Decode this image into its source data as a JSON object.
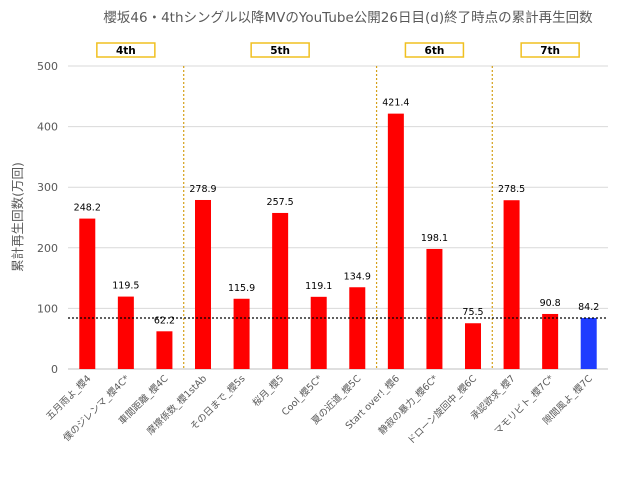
{
  "chart_data": {
    "type": "bar",
    "title": "櫻坂46・4thシングル以降MVのYouTube公開26日目(d)終了時点の累計再生回数",
    "xlabel": "",
    "ylabel": "累計再生回数(万回)",
    "ylim": [
      0,
      500
    ],
    "yticks": [
      "0",
      "100",
      "200",
      "300",
      "400",
      "500"
    ],
    "grid": "horizontal",
    "categories": [
      "五月雨よ_櫻4",
      "僕のジレンマ_櫻4C*",
      "車間距離_櫻4C",
      "摩擦係数_櫻1stAb",
      "その日まで_櫻5s",
      "桜月_櫻5",
      "Cool_櫻5C*",
      "夏の近道_櫻5C",
      "Start over!_櫻6",
      "静寂の暴力_櫻6C*",
      "ドローン旋回中_櫻6C",
      "承認欲求_櫻7",
      "マモリビト_櫻7C*",
      "隙間風よ_櫻7C"
    ],
    "values": [
      248.2,
      119.5,
      62.2,
      278.9,
      115.9,
      257.5,
      119.1,
      134.9,
      421.4,
      198.1,
      75.5,
      278.5,
      90.8,
      84.2
    ],
    "value_labels": [
      "248.2",
      "119.5",
      "62.2",
      "278.9",
      "115.9",
      "257.5",
      "119.1",
      "134.9",
      "421.4",
      "198.1",
      "75.5",
      "278.5",
      "90.8",
      "84.2"
    ],
    "bar_colors": [
      "#ff0000",
      "#ff0000",
      "#ff0000",
      "#ff0000",
      "#ff0000",
      "#ff0000",
      "#ff0000",
      "#ff0000",
      "#ff0000",
      "#ff0000",
      "#ff0000",
      "#ff0000",
      "#ff0000",
      "#1f3cff"
    ],
    "reference_line": {
      "value": 84.2,
      "style": "dotted",
      "color": "#000000"
    },
    "groups": [
      {
        "label": "4th",
        "start": 0,
        "end": 2
      },
      {
        "label": "5th",
        "start": 3,
        "end": 7
      },
      {
        "label": "6th",
        "start": 8,
        "end": 10
      },
      {
        "label": "7th",
        "start": 11,
        "end": 13
      }
    ],
    "group_separator_color": "#d4a017",
    "group_box_border": "#f0c020"
  }
}
